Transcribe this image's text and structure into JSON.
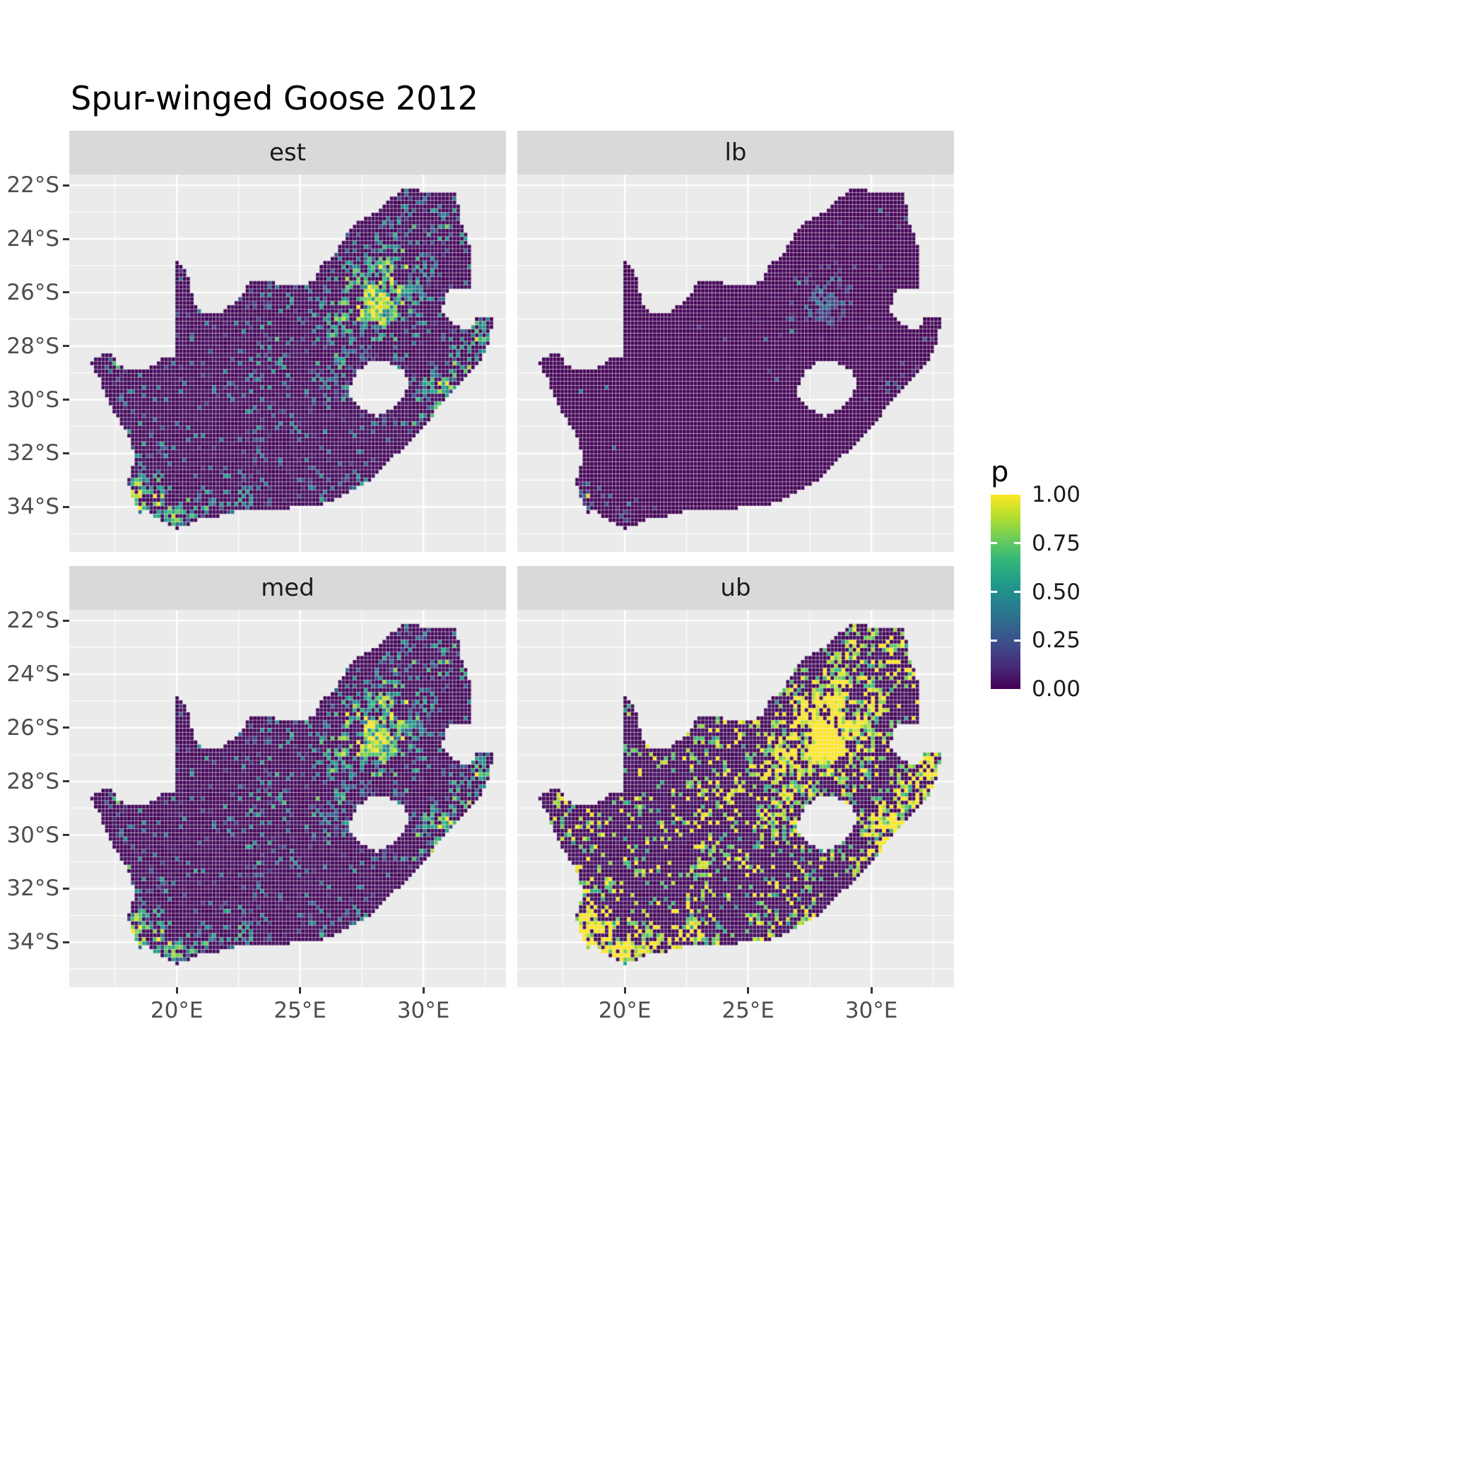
{
  "title": "Spur-winged Goose 2012",
  "chart_data": {
    "type": "heatmap",
    "subtype": "faceted-raster-map",
    "region": "South Africa",
    "facets": [
      {
        "id": "est",
        "label": "est"
      },
      {
        "id": "lb",
        "label": "lb"
      },
      {
        "id": "med",
        "label": "med"
      },
      {
        "id": "ub",
        "label": "ub"
      }
    ],
    "legend": {
      "title": "p",
      "ticks": [
        {
          "value": 1.0,
          "label": "1.00"
        },
        {
          "value": 0.75,
          "label": "0.75"
        },
        {
          "value": 0.5,
          "label": "0.50"
        },
        {
          "value": 0.25,
          "label": "0.25"
        },
        {
          "value": 0.0,
          "label": "0.00"
        }
      ]
    },
    "axes": {
      "x": {
        "range": [
          15.64,
          33.35
        ],
        "ticks": [
          {
            "value": 20,
            "label": "20°E"
          },
          {
            "value": 25,
            "label": "25°E"
          },
          {
            "value": 30,
            "label": "30°E"
          }
        ],
        "minor": [
          17.5,
          22.5,
          27.5,
          32.5
        ]
      },
      "y": {
        "range": [
          -35.68,
          -21.6
        ],
        "ticks": [
          {
            "value": -22,
            "label": "22°S"
          },
          {
            "value": -24,
            "label": "24°S"
          },
          {
            "value": -26,
            "label": "26°S"
          },
          {
            "value": -28,
            "label": "28°S"
          },
          {
            "value": -30,
            "label": "30°S"
          },
          {
            "value": -32,
            "label": "32°S"
          },
          {
            "value": -34,
            "label": "34°S"
          }
        ],
        "minor": [
          -23,
          -25,
          -27,
          -29,
          -31,
          -33,
          -35
        ]
      }
    },
    "palette": {
      "name": "viridis",
      "stops": [
        [
          0.0,
          "#440154"
        ],
        [
          0.1111,
          "#482878"
        ],
        [
          0.2222,
          "#3E4A89"
        ],
        [
          0.3333,
          "#31688E"
        ],
        [
          0.4444,
          "#26828E"
        ],
        [
          0.5556,
          "#1F9E89"
        ],
        [
          0.6667,
          "#35B779"
        ],
        [
          0.7778,
          "#6ECE58"
        ],
        [
          0.8889,
          "#B5DE2B"
        ],
        [
          1.0,
          "#FDE725"
        ]
      ]
    },
    "colors": {
      "background": "#FFFFFF",
      "panel_bg": "#EBEBEB",
      "strip_bg": "#D9D9D9",
      "grid": "#FFFFFF",
      "axis_text": "#4D4D4D",
      "tick_mark": "#333333",
      "text": "#1A1A1A",
      "raster_low": "#440154",
      "raster_high": "#FDE725"
    },
    "raster": {
      "cell_deg": 0.15,
      "seed": 20121,
      "value_range": [
        0,
        1
      ],
      "base_level": 0.05,
      "hotspots": [
        [
          27.9,
          -26.2,
          1.5,
          1.0
        ],
        [
          28.6,
          -25.5,
          1.2,
          0.8
        ],
        [
          26.7,
          -26.8,
          1.2,
          0.55
        ],
        [
          28.8,
          -24.6,
          1.0,
          0.45
        ],
        [
          29.8,
          -23.8,
          1.2,
          0.35
        ],
        [
          31.0,
          -23.5,
          0.9,
          0.35
        ],
        [
          30.8,
          -29.8,
          1.0,
          0.65
        ],
        [
          31.6,
          -28.8,
          0.9,
          0.6
        ],
        [
          32.3,
          -27.6,
          0.8,
          0.55
        ],
        [
          30.0,
          -30.9,
          0.7,
          0.5
        ],
        [
          18.8,
          -33.9,
          1.0,
          0.9
        ],
        [
          19.6,
          -34.4,
          0.9,
          0.65
        ],
        [
          20.8,
          -34.2,
          0.8,
          0.5
        ],
        [
          22.5,
          -33.9,
          1.0,
          0.35
        ],
        [
          25.5,
          -33.8,
          0.8,
          0.4
        ],
        [
          27.5,
          -33.0,
          0.7,
          0.35
        ],
        [
          26.5,
          -28.7,
          1.5,
          0.3
        ],
        [
          24.0,
          -28.0,
          1.5,
          0.2
        ],
        [
          18.5,
          -31.8,
          0.8,
          0.3
        ],
        [
          17.3,
          -28.8,
          0.6,
          0.35
        ],
        [
          23.0,
          -30.5,
          1.5,
          0.15
        ]
      ],
      "region_outline": [
        [
          16.45,
          -28.58
        ],
        [
          16.9,
          -28.4
        ],
        [
          17.2,
          -28.2
        ],
        [
          17.45,
          -28.4
        ],
        [
          17.65,
          -28.75
        ],
        [
          18.2,
          -28.9
        ],
        [
          18.8,
          -28.85
        ],
        [
          19.4,
          -28.5
        ],
        [
          19.98,
          -28.42
        ],
        [
          19.98,
          -24.75
        ],
        [
          20.3,
          -25.05
        ],
        [
          20.55,
          -25.6
        ],
        [
          20.65,
          -26.15
        ],
        [
          20.85,
          -26.6
        ],
        [
          21.4,
          -26.85
        ],
        [
          22.0,
          -26.65
        ],
        [
          22.5,
          -26.2
        ],
        [
          23.0,
          -25.65
        ],
        [
          23.7,
          -25.55
        ],
        [
          24.3,
          -25.75
        ],
        [
          24.9,
          -25.8
        ],
        [
          25.55,
          -25.55
        ],
        [
          25.9,
          -24.95
        ],
        [
          26.45,
          -24.6
        ],
        [
          26.85,
          -23.85
        ],
        [
          27.3,
          -23.4
        ],
        [
          27.95,
          -23.1
        ],
        [
          28.6,
          -22.55
        ],
        [
          29.25,
          -22.15
        ],
        [
          29.9,
          -22.2
        ],
        [
          30.6,
          -22.3
        ],
        [
          31.3,
          -22.35
        ],
        [
          31.5,
          -23.0
        ],
        [
          31.6,
          -23.6
        ],
        [
          31.85,
          -24.1
        ],
        [
          32.0,
          -24.7
        ],
        [
          32.0,
          -25.6
        ],
        [
          31.9,
          -25.95
        ],
        [
          31.2,
          -25.85
        ],
        [
          30.85,
          -26.2
        ],
        [
          30.8,
          -26.75
        ],
        [
          31.05,
          -27.1
        ],
        [
          31.5,
          -27.3
        ],
        [
          31.97,
          -27.3
        ],
        [
          32.13,
          -26.85
        ],
        [
          32.9,
          -26.85
        ],
        [
          32.55,
          -28.2
        ],
        [
          32.1,
          -28.8
        ],
        [
          31.4,
          -29.5
        ],
        [
          30.75,
          -30.2
        ],
        [
          30.1,
          -30.9
        ],
        [
          29.4,
          -31.65
        ],
        [
          28.6,
          -32.3
        ],
        [
          27.9,
          -33.05
        ],
        [
          27.1,
          -33.35
        ],
        [
          26.4,
          -33.75
        ],
        [
          25.65,
          -34.0
        ],
        [
          25.0,
          -34.0
        ],
        [
          24.2,
          -34.1
        ],
        [
          23.4,
          -34.1
        ],
        [
          22.6,
          -34.15
        ],
        [
          21.8,
          -34.35
        ],
        [
          21.0,
          -34.4
        ],
        [
          20.5,
          -34.65
        ],
        [
          20.0,
          -34.85
        ],
        [
          19.5,
          -34.6
        ],
        [
          19.1,
          -34.4
        ],
        [
          18.75,
          -34.1
        ],
        [
          18.45,
          -34.35
        ],
        [
          18.35,
          -33.9
        ],
        [
          18.0,
          -33.1
        ],
        [
          18.25,
          -32.4
        ],
        [
          18.2,
          -31.6
        ],
        [
          17.6,
          -30.7
        ],
        [
          17.15,
          -29.9
        ],
        [
          16.85,
          -29.2
        ]
      ],
      "lesotho_hole": [
        [
          27.0,
          -29.6
        ],
        [
          27.35,
          -28.95
        ],
        [
          27.85,
          -28.6
        ],
        [
          28.6,
          -28.65
        ],
        [
          29.15,
          -28.9
        ],
        [
          29.45,
          -29.3
        ],
        [
          29.25,
          -29.85
        ],
        [
          28.7,
          -30.35
        ],
        [
          28.05,
          -30.65
        ],
        [
          27.5,
          -30.3
        ],
        [
          27.1,
          -30.0
        ]
      ]
    }
  }
}
